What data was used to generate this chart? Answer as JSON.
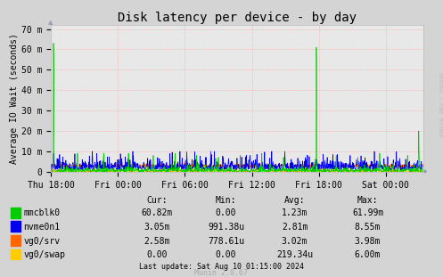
{
  "title": "Disk latency per device - by day",
  "ylabel": "Average IO Wait (seconds)",
  "background_color": "#d4d4d4",
  "plot_bg_color": "#e8e8e8",
  "grid_color": "#ff9999",
  "ytick_labels": [
    "0",
    "10 m",
    "20 m",
    "30 m",
    "40 m",
    "50 m",
    "60 m",
    "70 m"
  ],
  "ytick_values": [
    0,
    0.01,
    0.02,
    0.03,
    0.04,
    0.05,
    0.06,
    0.07
  ],
  "ylim": [
    0,
    0.072
  ],
  "xtick_labels": [
    "Thu 18:00",
    "Fri 00:00",
    "Fri 06:00",
    "Fri 12:00",
    "Fri 18:00",
    "Sat 00:00"
  ],
  "xtick_positions": [
    0,
    216,
    432,
    648,
    864,
    1080
  ],
  "total_points": 1200,
  "series": {
    "mmcblk0": {
      "color": "#00cc00"
    },
    "nvme0n1": {
      "color": "#0000ee"
    },
    "vg0_srv": {
      "color": "#ff6600"
    },
    "vg0_swap": {
      "color": "#ffcc00"
    }
  },
  "legend_items": [
    {
      "label": "mmcblk0",
      "color": "#00cc00",
      "cur": "60.82m",
      "min": "0.00",
      "avg": "1.23m",
      "max": "61.99m"
    },
    {
      "label": "nvme0n1",
      "color": "#0000ee",
      "cur": "3.05m",
      "min": "991.38u",
      "avg": "2.81m",
      "max": "8.55m"
    },
    {
      "label": "vg0/srv",
      "color": "#ff6600",
      "cur": "2.58m",
      "min": "778.61u",
      "avg": "3.02m",
      "max": "3.98m"
    },
    {
      "label": "vg0/swap",
      "color": "#ffcc00",
      "cur": "0.00",
      "min": "0.00",
      "avg": "219.34u",
      "max": "6.00m"
    }
  ],
  "footer_text": "Last update: Sat Aug 10 01:15:00 2024",
  "munin_text": "Munin 2.0.67",
  "rrdtool_text": "RRDTOOL / TOBI OETIKER",
  "arrow_color": "#9999bb",
  "dot_color": "#9999bb",
  "title_fontsize": 10,
  "axis_fontsize": 7,
  "legend_fontsize": 7,
  "footer_fontsize": 6
}
